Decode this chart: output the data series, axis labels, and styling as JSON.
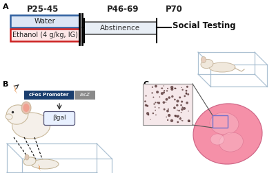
{
  "bg_color": "#ffffff",
  "panel_A": {
    "label": "A",
    "p25_label": "P25-45",
    "p46_label": "P46-69",
    "p70_label": "P70",
    "water_label": "Water",
    "ethanol_label": "Ethanol (4 g/kg, IG)",
    "abstinence_label": "Abstinence",
    "social_label": "Social Testing",
    "water_box_color": "#3060a0",
    "water_fill": "#dce6f5",
    "ethanol_box_color": "#cc2020",
    "ethanol_fill": "#fde8e8",
    "abstinence_fill": "#e8eef5",
    "abstinence_border": "#505050"
  },
  "panel_B": {
    "label": "B",
    "promoter_label": "cFos Promoter",
    "lacz_label": "lacZ",
    "bgal_label": "βgal",
    "promoter_color": "#1a3e6e",
    "lacz_color": "#888888"
  },
  "panel_C": {
    "label": "C",
    "micro_bg": "#f5e8ea",
    "micro_dots_color": "#4a2828",
    "brain_color": "#f090a8",
    "brain_edge": "#c06080",
    "zoom_box_color": "#7070cc"
  }
}
